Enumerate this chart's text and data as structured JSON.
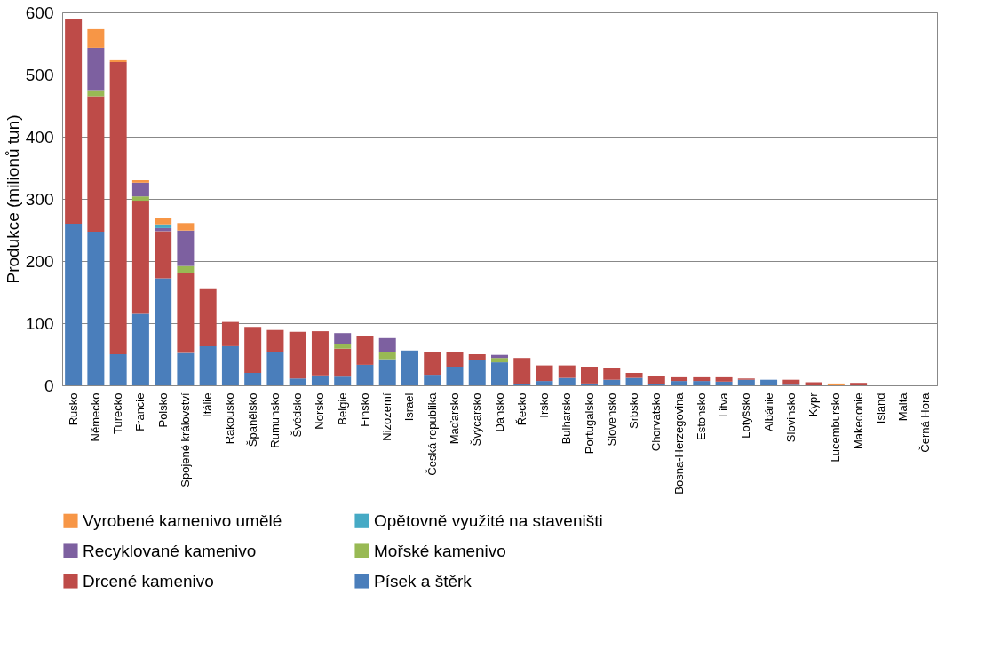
{
  "chart_data": {
    "type": "bar",
    "stacked": true,
    "ylabel": "Produkce (milionů tun)",
    "categories": [
      "Rusko",
      "Německo",
      "Turecko",
      "Francie",
      "Polsko",
      "Spojené království",
      "Itálie",
      "Rakousko",
      "Španělsko",
      "Rumunsko",
      "Švédsko",
      "Norsko",
      "Belgie",
      "Finsko",
      "Nizozemí",
      "Israel",
      "Česká republika",
      "Maďarsko",
      "Švýcarsko",
      "Dánsko",
      "Řecko",
      "Irsko",
      "Bulharsko",
      "Portugalsko",
      "Slovensko",
      "Srbsko",
      "Chorvatsko",
      "Bosna-Herzegovina",
      "Estonsko",
      "Litva",
      "Lotyšsko",
      "Albánie",
      "Slovinsko",
      "Kypr",
      "Lucembursko",
      "Makedonie",
      "Island",
      "Malta",
      "Černá Hora"
    ],
    "series": [
      {
        "name": "Písek a štěrk",
        "color": "#4a7ebb",
        "values": [
          260,
          247,
          50,
          115,
          172,
          52,
          63,
          63,
          20,
          53,
          11,
          16,
          14,
          33,
          42,
          56,
          17,
          30,
          40,
          37,
          2,
          7,
          12,
          3,
          9,
          12,
          2,
          7,
          7,
          6,
          9,
          9,
          1,
          null,
          null,
          null,
          null,
          null,
          null
        ]
      },
      {
        "name": "Drcené kamenivo",
        "color": "#be4b48",
        "values": [
          330,
          218,
          470,
          182,
          76,
          128,
          93,
          39,
          74,
          36,
          75,
          71,
          45,
          46,
          null,
          null,
          37,
          23,
          10,
          null,
          42,
          25,
          20,
          27,
          19,
          8,
          13,
          6,
          6,
          7,
          2,
          null,
          8,
          5,
          null,
          4,
          null,
          null,
          null
        ]
      },
      {
        "name": "Mořské kamenivo",
        "color": "#98b954",
        "values": [
          null,
          10,
          null,
          7,
          null,
          12,
          null,
          null,
          null,
          null,
          null,
          null,
          7,
          null,
          12,
          null,
          null,
          null,
          null,
          7,
          null,
          null,
          null,
          null,
          null,
          null,
          null,
          null,
          null,
          null,
          null,
          null,
          null,
          null,
          null,
          null,
          null,
          null,
          null
        ]
      },
      {
        "name": "Recyklované kamenivo",
        "color": "#7d60a0",
        "values": [
          null,
          68,
          null,
          22,
          5,
          57,
          null,
          null,
          null,
          null,
          null,
          null,
          18,
          null,
          22,
          null,
          null,
          null,
          null,
          5,
          null,
          null,
          null,
          null,
          null,
          null,
          null,
          null,
          null,
          null,
          null,
          null,
          null,
          null,
          null,
          null,
          null,
          null,
          null
        ]
      },
      {
        "name": "Opětovně využité na staveništi",
        "color": "#46aac5",
        "values": [
          null,
          null,
          null,
          null,
          6,
          null,
          null,
          null,
          null,
          null,
          null,
          null,
          null,
          null,
          null,
          null,
          null,
          null,
          null,
          null,
          null,
          null,
          null,
          null,
          null,
          null,
          null,
          null,
          null,
          null,
          null,
          null,
          null,
          null,
          null,
          null,
          null,
          null,
          null
        ]
      },
      {
        "name": "Vyrobené kamenivo umělé",
        "color": "#f79646",
        "values": [
          null,
          30,
          3,
          4,
          10,
          12,
          null,
          null,
          null,
          null,
          null,
          null,
          null,
          null,
          null,
          null,
          null,
          null,
          null,
          null,
          null,
          null,
          null,
          null,
          null,
          null,
          null,
          null,
          null,
          null,
          null,
          null,
          null,
          null,
          3,
          null,
          null,
          null,
          null
        ]
      }
    ],
    "ylim": [
      0,
      600
    ],
    "yticks": [
      0,
      100,
      200,
      300,
      400,
      500,
      600
    ],
    "grid": "y",
    "legend": "bottom"
  }
}
